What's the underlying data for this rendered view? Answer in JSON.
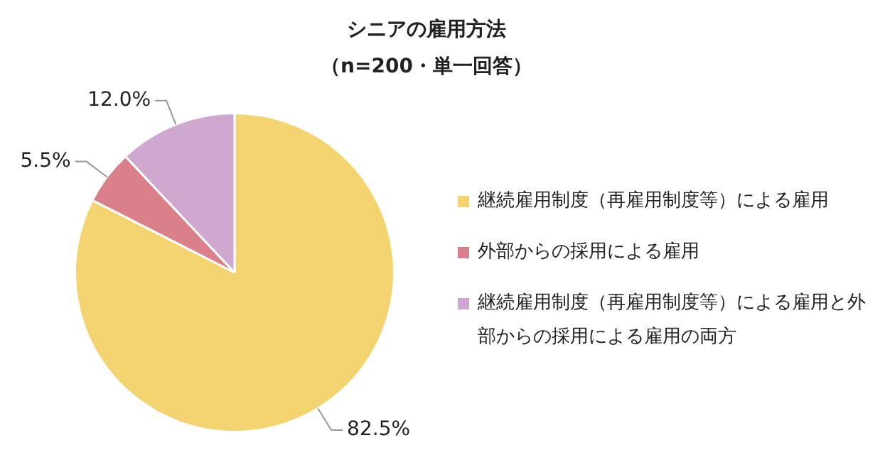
{
  "chart_data": {
    "type": "pie",
    "title": "シニアの雇用方法",
    "subtitle": "（n=200・単一回答）",
    "categories": [
      "継続雇用制度（再雇用制度等）による雇用",
      "外部からの採用による雇用",
      "継続雇用制度（再雇用制度等）による雇用と外部からの採用による雇用の両方"
    ],
    "values": [
      82.5,
      5.5,
      12.0
    ],
    "colors": [
      "#f3d470",
      "#d9808a",
      "#cfa8cf"
    ],
    "value_labels": [
      "82.5%",
      "5.5%",
      "12.0%"
    ],
    "legend": "right"
  }
}
